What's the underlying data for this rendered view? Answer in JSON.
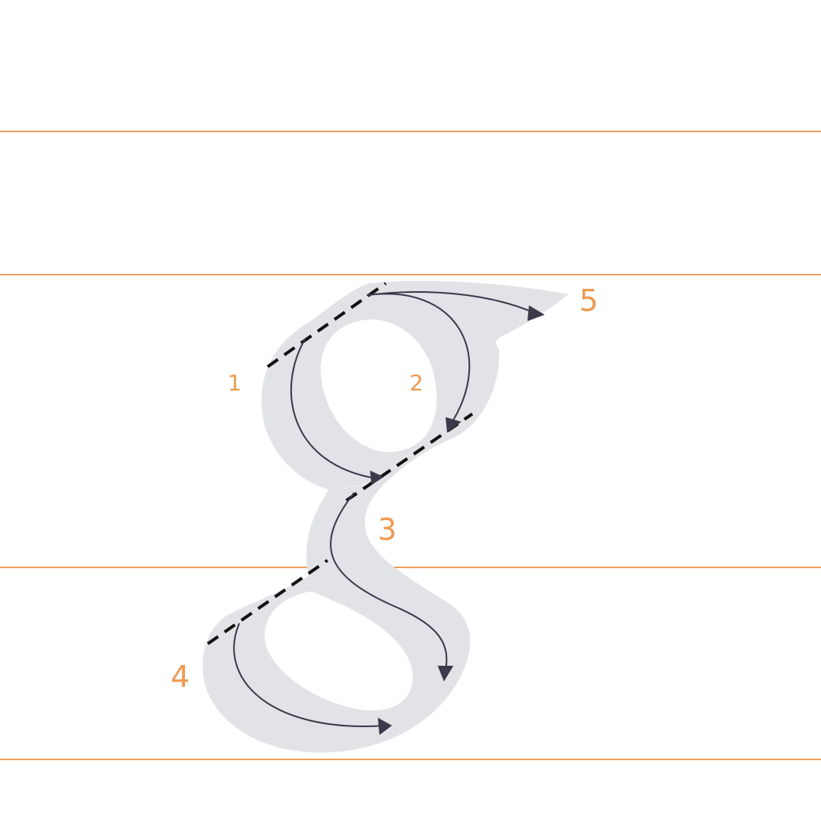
{
  "diagram": {
    "steps": [
      "1",
      "2",
      "3",
      "4",
      "5"
    ],
    "colors": {
      "guide_lines": "#f0a060",
      "step_numbers": "#ee9a52",
      "letter_shape": "#e2e3e7",
      "stroke_arrows": "#3a3a4a",
      "slant_lines": "#111111"
    }
  }
}
